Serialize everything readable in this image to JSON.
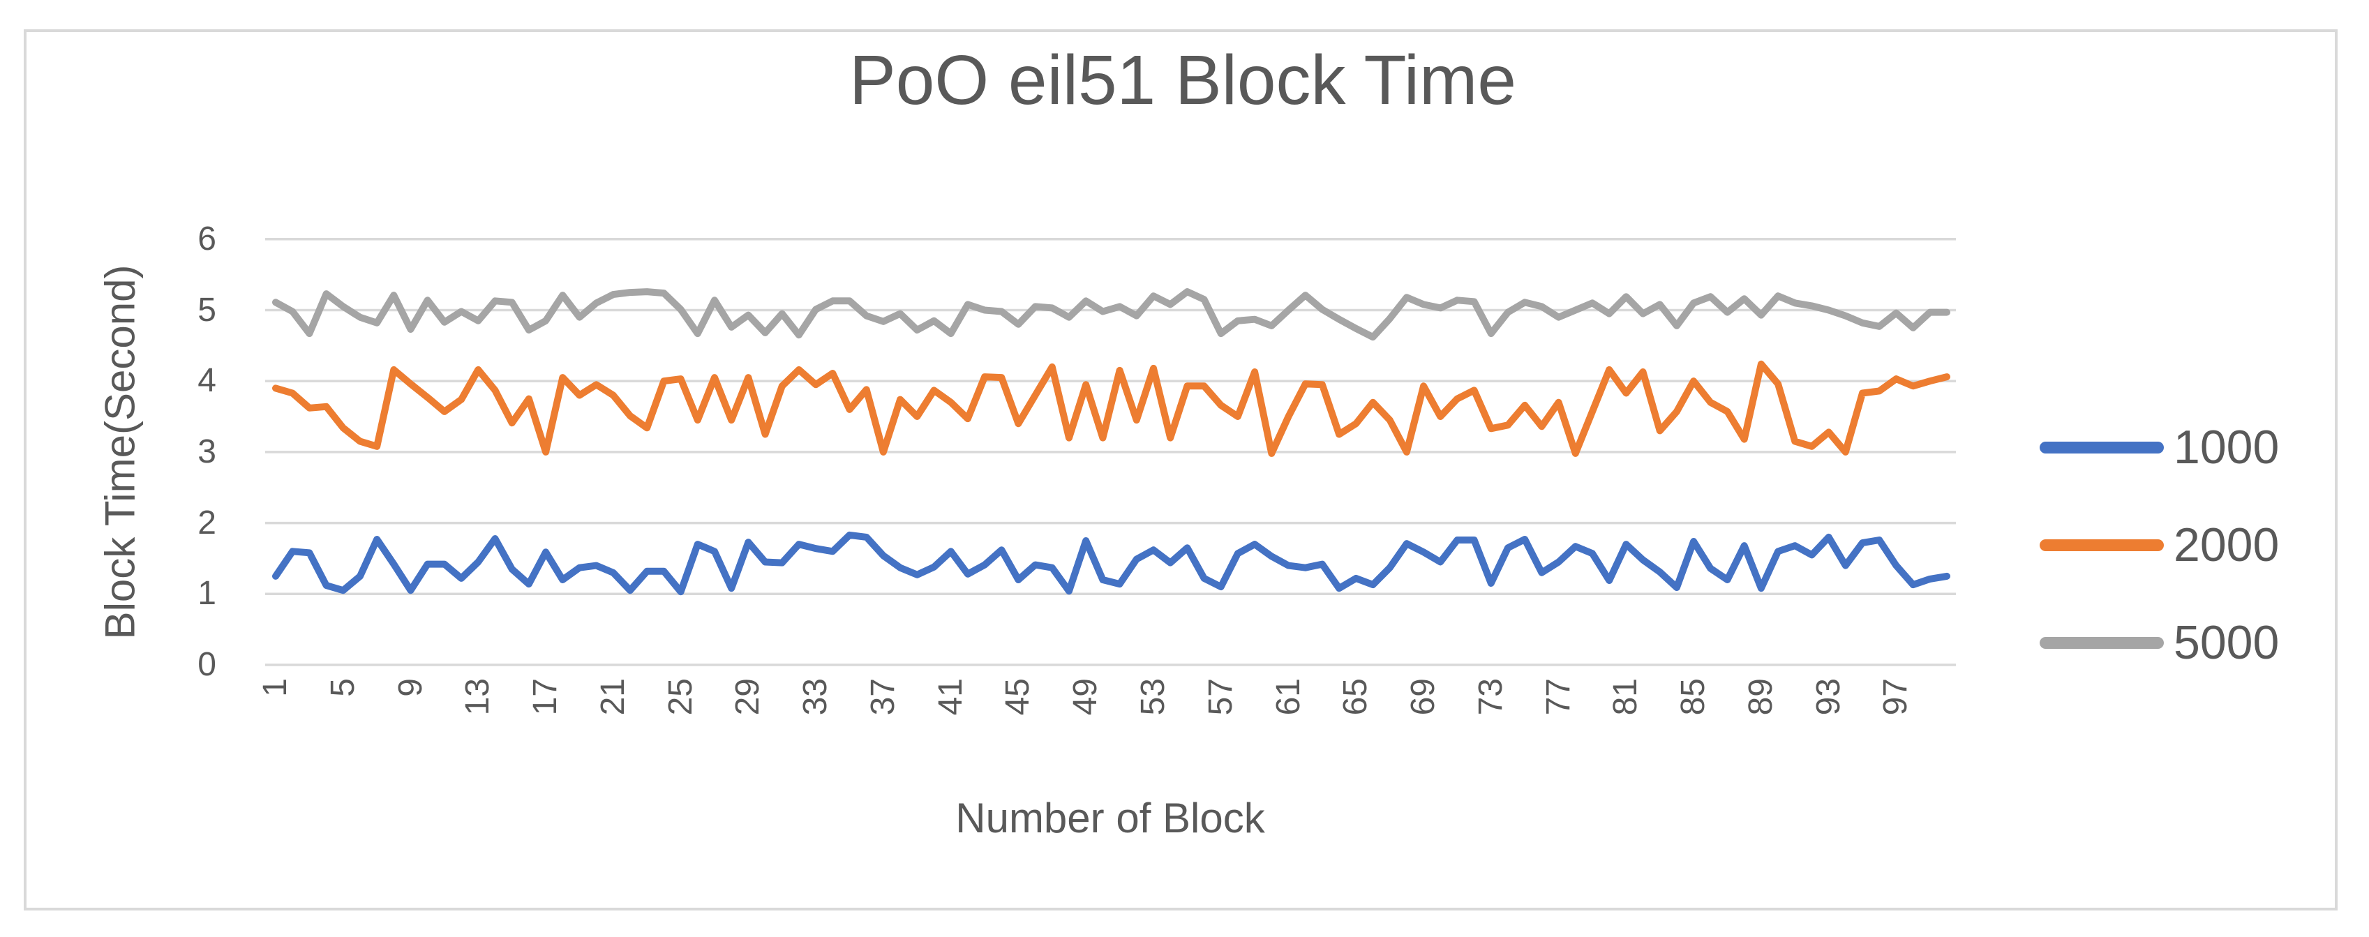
{
  "title": "PoO eil51 Block Time",
  "y_axis_title": "Block Time(Second)",
  "x_axis_title": "Number of Block",
  "colors": {
    "series_1000": "#4472C4",
    "series_2000": "#ED7D31",
    "series_5000": "#A5A5A5",
    "gridline": "#D9D9D9",
    "text": "#595959",
    "frame_border": "#D9D9D9",
    "background": "#FFFFFF"
  },
  "legend": {
    "position": "right",
    "items": [
      {
        "label": "1000",
        "color": "#4472C4"
      },
      {
        "label": "2000",
        "color": "#ED7D31"
      },
      {
        "label": "5000",
        "color": "#A5A5A5"
      }
    ]
  },
  "chart_data": {
    "type": "line",
    "title": "PoO eil51 Block Time",
    "xlabel": "Number of Block",
    "ylabel": "Block Time(Second)",
    "ylim": [
      0,
      6
    ],
    "y_ticks": [
      0,
      1,
      2,
      3,
      4,
      5,
      6
    ],
    "x_range": [
      1,
      100
    ],
    "x_tick_labels": [
      "1",
      "5",
      "9",
      "13",
      "17",
      "21",
      "25",
      "29",
      "33",
      "37",
      "41",
      "45",
      "49",
      "53",
      "57",
      "61",
      "65",
      "69",
      "73",
      "77",
      "81",
      "85",
      "89",
      "93",
      "97"
    ],
    "x_tick_step": 4,
    "grid": true,
    "legend_position": "right",
    "series": [
      {
        "name": "1000",
        "color": "#4472C4",
        "values": [
          1.25,
          1.6,
          1.58,
          1.12,
          1.05,
          1.25,
          1.77,
          1.42,
          1.05,
          1.42,
          1.42,
          1.22,
          1.45,
          1.78,
          1.35,
          1.14,
          1.59,
          1.2,
          1.37,
          1.4,
          1.3,
          1.05,
          1.32,
          1.32,
          1.03,
          1.7,
          1.6,
          1.08,
          1.73,
          1.45,
          1.44,
          1.7,
          1.64,
          1.6,
          1.83,
          1.8,
          1.54,
          1.37,
          1.27,
          1.38,
          1.6,
          1.28,
          1.41,
          1.62,
          1.2,
          1.41,
          1.37,
          1.04,
          1.75,
          1.2,
          1.14,
          1.49,
          1.62,
          1.44,
          1.65,
          1.22,
          1.1,
          1.57,
          1.7,
          1.53,
          1.4,
          1.37,
          1.42,
          1.08,
          1.22,
          1.13,
          1.37,
          1.71,
          1.59,
          1.45,
          1.76,
          1.76,
          1.15,
          1.65,
          1.77,
          1.3,
          1.45,
          1.67,
          1.57,
          1.19,
          1.7,
          1.48,
          1.31,
          1.09,
          1.74,
          1.36,
          1.2,
          1.68,
          1.08,
          1.6,
          1.68,
          1.55,
          1.8,
          1.4,
          1.72,
          1.76,
          1.4,
          1.13,
          1.21,
          1.25
        ]
      },
      {
        "name": "2000",
        "color": "#ED7D31",
        "values": [
          3.9,
          3.83,
          3.62,
          3.64,
          3.34,
          3.15,
          3.08,
          4.16,
          3.96,
          3.77,
          3.57,
          3.74,
          4.16,
          3.87,
          3.41,
          3.75,
          3.0,
          4.05,
          3.8,
          3.95,
          3.8,
          3.51,
          3.34,
          4.0,
          4.03,
          3.45,
          4.05,
          3.45,
          4.05,
          3.25,
          3.93,
          4.16,
          3.95,
          4.11,
          3.6,
          3.88,
          3.0,
          3.74,
          3.5,
          3.87,
          3.7,
          3.47,
          4.06,
          4.05,
          3.4,
          3.8,
          4.2,
          3.2,
          3.95,
          3.2,
          4.15,
          3.45,
          4.18,
          3.2,
          3.93,
          3.93,
          3.66,
          3.5,
          4.13,
          2.98,
          3.5,
          3.96,
          3.95,
          3.25,
          3.4,
          3.7,
          3.45,
          3.0,
          3.93,
          3.5,
          3.75,
          3.87,
          3.33,
          3.38,
          3.66,
          3.36,
          3.7,
          2.98,
          3.57,
          4.16,
          3.83,
          4.13,
          3.3,
          3.57,
          4.0,
          3.7,
          3.57,
          3.18,
          4.24,
          3.96,
          3.15,
          3.08,
          3.28,
          3.0,
          3.83,
          3.86,
          4.03,
          3.93,
          4.0,
          4.06
        ]
      },
      {
        "name": "5000",
        "color": "#A5A5A5",
        "values": [
          5.11,
          4.98,
          4.67,
          5.23,
          5.05,
          4.9,
          4.82,
          5.21,
          4.73,
          5.14,
          4.83,
          4.98,
          4.85,
          5.13,
          5.11,
          4.72,
          4.85,
          5.21,
          4.9,
          5.1,
          5.22,
          5.25,
          5.26,
          5.24,
          5.01,
          4.67,
          5.14,
          4.76,
          4.93,
          4.68,
          4.95,
          4.65,
          5.01,
          5.13,
          5.13,
          4.92,
          4.84,
          4.95,
          4.72,
          4.85,
          4.67,
          5.08,
          5.0,
          4.98,
          4.8,
          5.05,
          5.03,
          4.9,
          5.13,
          4.98,
          5.05,
          4.92,
          5.2,
          5.08,
          5.26,
          5.15,
          4.67,
          4.85,
          4.87,
          4.78,
          5.0,
          5.21,
          5.01,
          4.87,
          4.74,
          4.62,
          4.88,
          5.18,
          5.08,
          5.03,
          5.14,
          5.12,
          4.67,
          4.97,
          5.11,
          5.05,
          4.9,
          5.0,
          5.1,
          4.95,
          5.19,
          4.95,
          5.08,
          4.78,
          5.1,
          5.19,
          4.97,
          5.16,
          4.93,
          5.2,
          5.1,
          5.06,
          5.0,
          4.92,
          4.82,
          4.77,
          4.96,
          4.75,
          4.97,
          4.97
        ]
      }
    ]
  }
}
